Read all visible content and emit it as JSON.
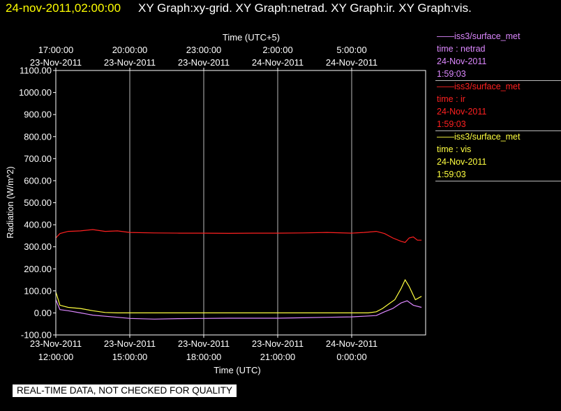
{
  "header": {
    "timestamp": "24-nov-2011,02:00:00",
    "titles": "XY Graph:xy-grid.  XY Graph:netrad.  XY Graph:ir.  XY Graph:vis."
  },
  "legend": [
    {
      "source": "——iss3/surface_met",
      "var": "time : netrad",
      "date": "24-Nov-2011",
      "time": "1:59:03",
      "color": "#dd88ff"
    },
    {
      "source": "——iss3/surface_met",
      "var": "time : ir",
      "date": "24-Nov-2011",
      "time": "1:59:03",
      "color": "#ff2020"
    },
    {
      "source": "——iss3/surface_met",
      "var": "time : vis",
      "date": "24-Nov-2011",
      "time": "1:59:03",
      "color": "#ffff40"
    }
  ],
  "disclaimer": "REAL-TIME DATA, NOT CHECKED FOR QUALITY",
  "chart_data": {
    "type": "line",
    "xlabel": "Time (UTC)",
    "xlabel_top": "Time (UTC+5)",
    "ylabel": "Radiation (W/m^2)",
    "xlim": [
      "2011-11-23 12:00",
      "2011-11-24 03:00"
    ],
    "ylim": [
      -100,
      1100
    ],
    "grid": "vertical",
    "y_ticks": [
      "-100.00",
      "0.00",
      "100.00",
      "200.00",
      "300.00",
      "400.00",
      "500.00",
      "600.00",
      "700.00",
      "800.00",
      "900.00",
      "1000.00",
      "1100.00"
    ],
    "x_ticks_bottom": [
      {
        "at": "2011-11-23 12:00",
        "date": "23-Nov-2011",
        "time": "12:00:00"
      },
      {
        "at": "2011-11-23 15:00",
        "date": "23-Nov-2011",
        "time": "15:00:00"
      },
      {
        "at": "2011-11-23 18:00",
        "date": "23-Nov-2011",
        "time": "18:00:00"
      },
      {
        "at": "2011-11-23 21:00",
        "date": "23-Nov-2011",
        "time": "21:00:00"
      },
      {
        "at": "2011-11-24 00:00",
        "date": "24-Nov-2011",
        "time": "0:00:00"
      }
    ],
    "x_ticks_top": [
      {
        "at": "2011-11-23 12:00",
        "time": "17:00:00",
        "date": "23-Nov-2011"
      },
      {
        "at": "2011-11-23 15:00",
        "time": "20:00:00",
        "date": "23-Nov-2011"
      },
      {
        "at": "2011-11-23 18:00",
        "time": "23:00:00",
        "date": "23-Nov-2011"
      },
      {
        "at": "2011-11-23 21:00",
        "time": "2:00:00",
        "date": "24-Nov-2011"
      },
      {
        "at": "2011-11-24 00:00",
        "time": "5:00:00",
        "date": "24-Nov-2011"
      }
    ],
    "series": [
      {
        "name": "ir",
        "color": "#ff2020",
        "x": [
          "2011-11-23 12:00",
          "2011-11-23 12:10",
          "2011-11-23 12:30",
          "2011-11-23 13:00",
          "2011-11-23 13:30",
          "2011-11-23 14:00",
          "2011-11-23 14:30",
          "2011-11-23 15:00",
          "2011-11-23 16:00",
          "2011-11-23 17:00",
          "2011-11-23 18:00",
          "2011-11-23 19:00",
          "2011-11-23 20:00",
          "2011-11-23 21:00",
          "2011-11-23 22:00",
          "2011-11-23 23:00",
          "2011-11-24 00:00",
          "2011-11-24 00:30",
          "2011-11-24 01:00",
          "2011-11-24 01:20",
          "2011-11-24 01:40",
          "2011-11-24 02:00",
          "2011-11-24 02:10",
          "2011-11-24 02:20",
          "2011-11-24 02:30",
          "2011-11-24 02:40",
          "2011-11-24 02:50"
        ],
        "values": [
          340,
          360,
          370,
          372,
          378,
          370,
          372,
          365,
          363,
          362,
          362,
          361,
          362,
          362,
          363,
          365,
          362,
          365,
          370,
          360,
          340,
          325,
          320,
          340,
          345,
          330,
          330
        ]
      },
      {
        "name": "netrad",
        "color": "#dd88ff",
        "x": [
          "2011-11-23 12:00",
          "2011-11-23 12:10",
          "2011-11-23 12:30",
          "2011-11-23 13:00",
          "2011-11-23 13:30",
          "2011-11-23 14:00",
          "2011-11-23 14:30",
          "2011-11-23 15:00",
          "2011-11-23 16:00",
          "2011-11-23 17:00",
          "2011-11-23 18:00",
          "2011-11-23 19:00",
          "2011-11-23 20:00",
          "2011-11-23 21:00",
          "2011-11-23 22:00",
          "2011-11-23 23:00",
          "2011-11-24 00:00",
          "2011-11-24 00:30",
          "2011-11-24 01:00",
          "2011-11-24 01:20",
          "2011-11-24 01:40",
          "2011-11-24 02:00",
          "2011-11-24 02:15",
          "2011-11-24 02:30",
          "2011-11-24 02:50"
        ],
        "values": [
          60,
          15,
          10,
          0,
          -10,
          -15,
          -20,
          -25,
          -28,
          -26,
          -25,
          -24,
          -24,
          -24,
          -22,
          -20,
          -18,
          -15,
          -12,
          5,
          20,
          45,
          55,
          35,
          25
        ]
      },
      {
        "name": "vis",
        "color": "#ffff40",
        "x": [
          "2011-11-23 12:00",
          "2011-11-23 12:10",
          "2011-11-23 12:30",
          "2011-11-23 13:00",
          "2011-11-23 13:30",
          "2011-11-23 14:00",
          "2011-11-23 14:30",
          "2011-11-23 15:00",
          "2011-11-23 18:00",
          "2011-11-23 21:00",
          "2011-11-24 00:00",
          "2011-11-24 00:40",
          "2011-11-24 01:00",
          "2011-11-24 01:15",
          "2011-11-24 01:30",
          "2011-11-24 01:45",
          "2011-11-24 02:00",
          "2011-11-24 02:10",
          "2011-11-24 02:20",
          "2011-11-24 02:35",
          "2011-11-24 02:50"
        ],
        "values": [
          95,
          35,
          25,
          20,
          10,
          2,
          0,
          0,
          0,
          0,
          0,
          0,
          5,
          20,
          40,
          60,
          110,
          150,
          120,
          60,
          75
        ]
      }
    ]
  }
}
